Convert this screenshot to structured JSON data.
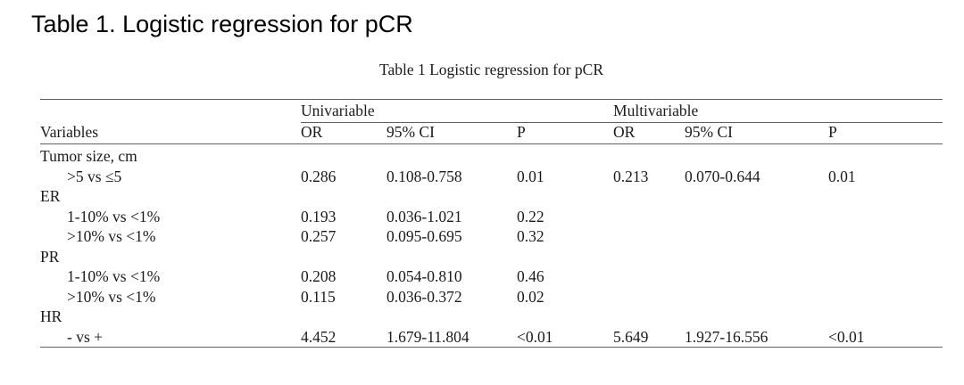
{
  "page": {
    "heading": "Table 1. Logistic regression for pCR",
    "caption": "Table 1 Logistic regression for pCR",
    "background_color": "#ffffff",
    "text_color": "#1b1b1b",
    "rule_color": "#5f5f5f"
  },
  "table": {
    "spanners": [
      "Univariable",
      "Multivariable"
    ],
    "column_headers": [
      "Variables",
      "OR",
      "95% CI",
      "P",
      "OR",
      "95% CI",
      "P"
    ],
    "rows": [
      {
        "label": "Tumor size, cm",
        "indent": false,
        "cells": [
          "",
          "",
          "",
          "",
          "",
          ""
        ]
      },
      {
        "label": ">5 vs ≤5",
        "indent": true,
        "cells": [
          "0.286",
          "0.108-0.758",
          "0.01",
          "0.213",
          "0.070-0.644",
          "0.01"
        ]
      },
      {
        "label": "ER",
        "indent": false,
        "cells": [
          "",
          "",
          "",
          "",
          "",
          ""
        ]
      },
      {
        "label": "1-10% vs <1%",
        "indent": true,
        "cells": [
          "0.193",
          "0.036-1.021",
          "0.22",
          "",
          "",
          ""
        ]
      },
      {
        "label": ">10% vs <1%",
        "indent": true,
        "cells": [
          "0.257",
          "0.095-0.695",
          "0.32",
          "",
          "",
          ""
        ]
      },
      {
        "label": "PR",
        "indent": false,
        "cells": [
          "",
          "",
          "",
          "",
          "",
          ""
        ]
      },
      {
        "label": "1-10% vs <1%",
        "indent": true,
        "cells": [
          "0.208",
          "0.054-0.810",
          "0.46",
          "",
          "",
          ""
        ]
      },
      {
        "label": ">10% vs <1%",
        "indent": true,
        "cells": [
          "0.115",
          "0.036-0.372",
          "0.02",
          "",
          "",
          ""
        ]
      },
      {
        "label": "HR",
        "indent": false,
        "cells": [
          "",
          "",
          "",
          "",
          "",
          ""
        ]
      },
      {
        "label": "- vs +",
        "indent": true,
        "cells": [
          "4.452",
          "1.679-11.804",
          "<0.01",
          "5.649",
          "1.927-16.556",
          "<0.01"
        ]
      }
    ]
  }
}
